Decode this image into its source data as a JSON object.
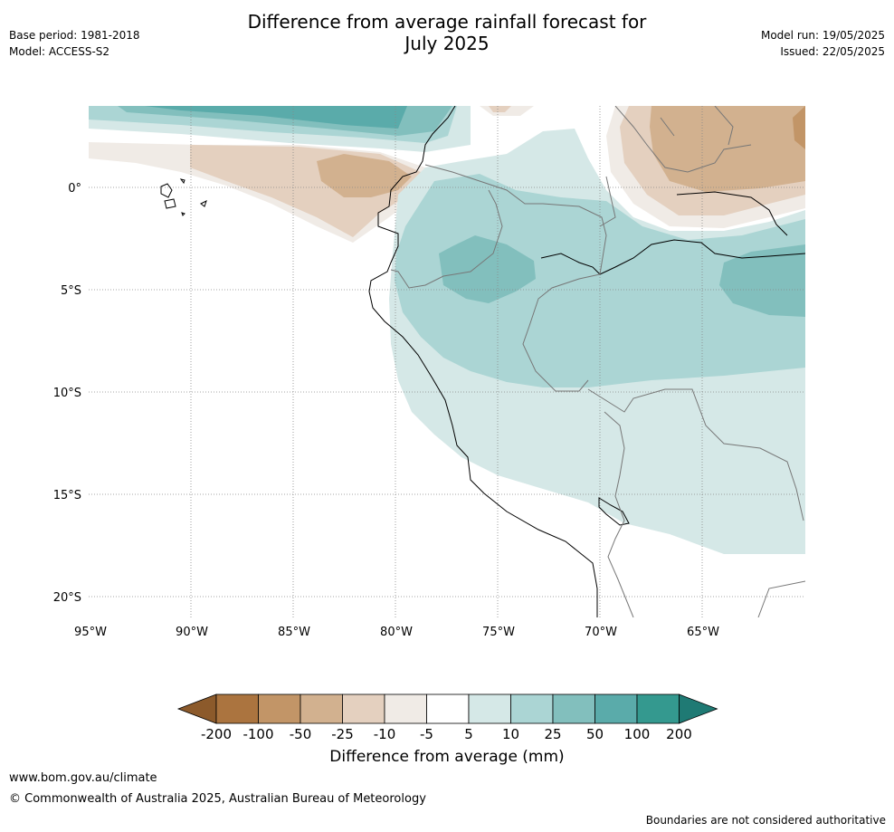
{
  "title": {
    "line1": "Difference from average rainfall forecast for",
    "line2": "July 2025"
  },
  "meta_left": {
    "base_period": "Base period: 1981-2018",
    "model": "Model: ACCESS-S2"
  },
  "meta_right": {
    "model_run": "Model run: 19/05/2025",
    "issued": "Issued: 22/05/2025"
  },
  "map": {
    "lat_labels": [
      "0°",
      "5°S",
      "10°S",
      "15°S",
      "20°S"
    ],
    "lat_values": [
      0,
      -5,
      -10,
      -15,
      -20
    ],
    "lon_labels": [
      "95°W",
      "90°W",
      "85°W",
      "80°W",
      "75°W",
      "70°W",
      "65°W"
    ],
    "lon_values": [
      -95,
      -90,
      -85,
      -80,
      -75,
      -70,
      -65
    ],
    "extent": {
      "lon_min": -95,
      "lon_max": -60,
      "lat_min": -21,
      "lat_max": 4
    }
  },
  "colorbar": {
    "ticks": [
      "-200",
      "-100",
      "-50",
      "-25",
      "-10",
      "-5",
      "5",
      "10",
      "25",
      "50",
      "100",
      "200"
    ],
    "colors": [
      "#8c5a2b",
      "#ab743f",
      "#c29567",
      "#d2b18f",
      "#e4d0bf",
      "#f0ebe6",
      "#ffffff",
      "#d5e8e7",
      "#abd5d4",
      "#82bfbd",
      "#5aabaa",
      "#34998f",
      "#1f7a74"
    ],
    "label": "Difference from average (mm)"
  },
  "footer": {
    "url": "www.bom.gov.au/climate",
    "copyright": "© Commonwealth of Australia 2025, Australian Bureau of Meteorology",
    "note": "Boundaries are not considered authoritative"
  }
}
